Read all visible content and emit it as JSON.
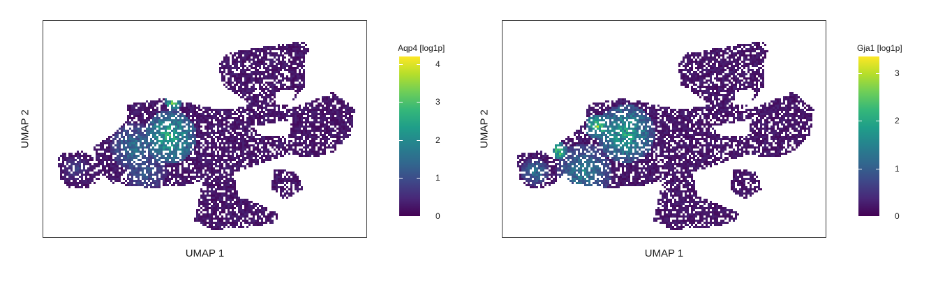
{
  "chart_data": [
    {
      "type": "heatmap",
      "subtype": "UMAP hexbin embedding",
      "xlabel": "UMAP 1",
      "ylabel": "UMAP 2",
      "colorbar": {
        "title": "Aqp4 [log1p]",
        "colormap": "viridis",
        "range": [
          0,
          4.2
        ],
        "ticks": [
          "0",
          "1",
          "2",
          "3",
          "4"
        ],
        "tick_values": [
          0,
          1,
          2,
          3,
          4
        ]
      },
      "high_expression_region": "upper-left central cluster",
      "grid": false
    },
    {
      "type": "heatmap",
      "subtype": "UMAP hexbin embedding",
      "xlabel": "UMAP 1",
      "ylabel": "UMAP 2",
      "colorbar": {
        "title": "Gja1 [log1p]",
        "colormap": "viridis",
        "range": [
          0,
          3.35
        ],
        "ticks": [
          "0",
          "1",
          "2",
          "3"
        ],
        "tick_values": [
          0,
          1,
          2,
          3
        ]
      },
      "high_expression_region": "upper-left central cluster and lower-left lobe",
      "grid": false
    }
  ],
  "colors": {
    "viridis": [
      "#440154",
      "#482878",
      "#3e4989",
      "#31688e",
      "#26828e",
      "#1f9e89",
      "#35b779",
      "#6ece58",
      "#b5de2b",
      "#fde725"
    ]
  }
}
